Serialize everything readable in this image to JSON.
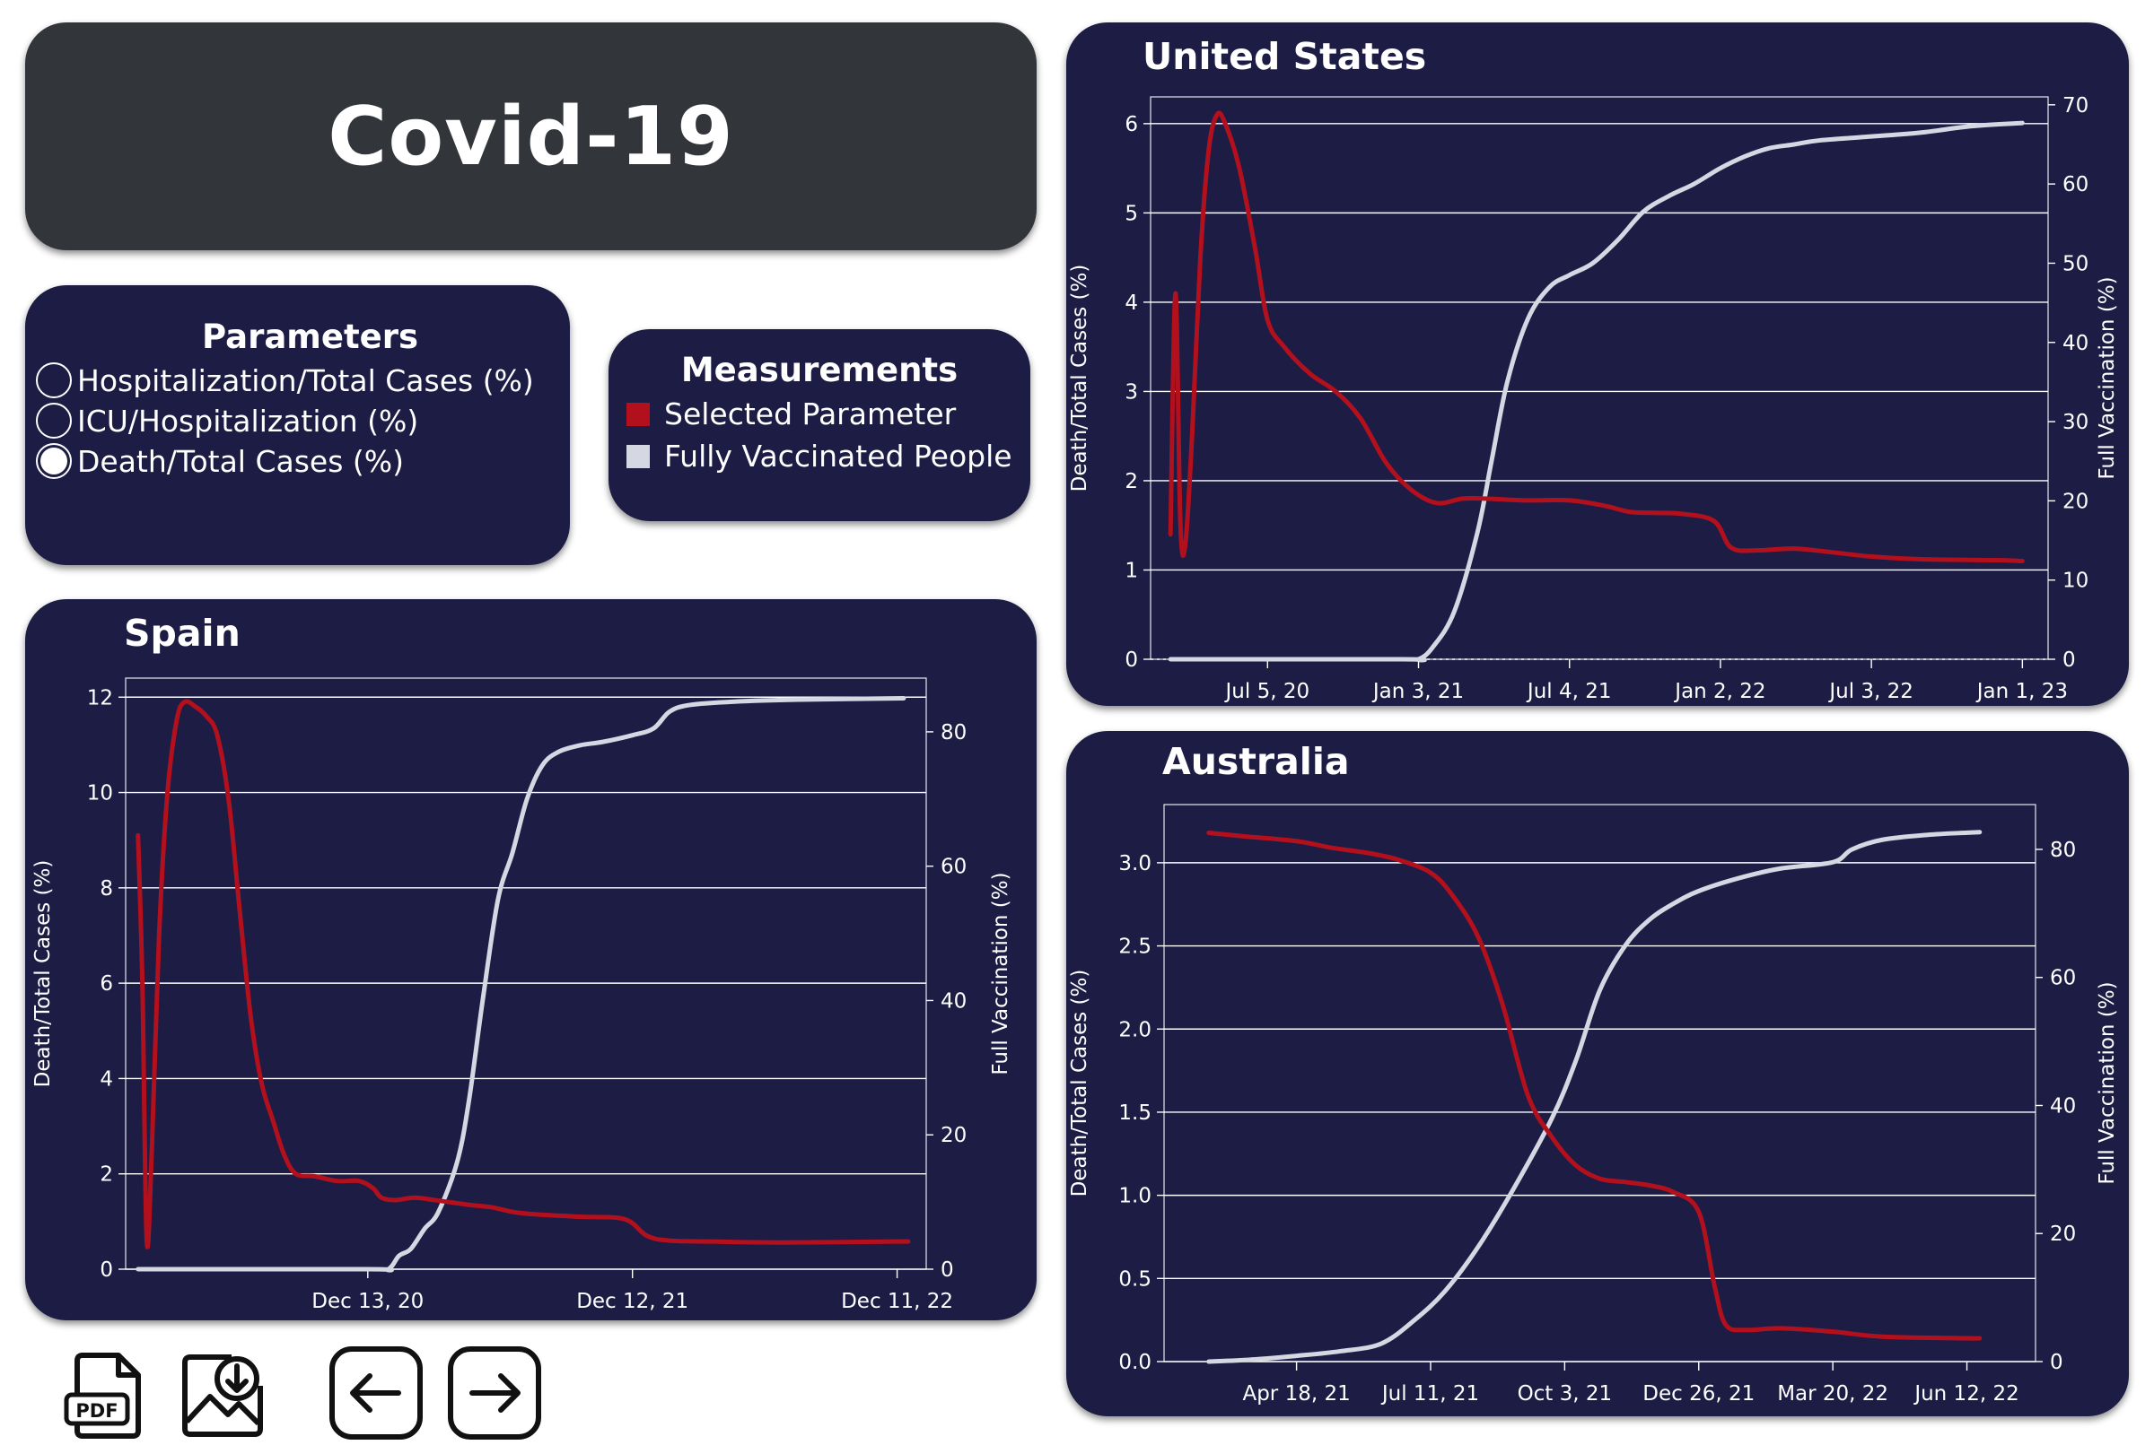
{
  "header": {
    "title": "Covid-19"
  },
  "parameters": {
    "title": "Parameters",
    "options": [
      {
        "label": "Hospitalization/Total Cases (%)",
        "checked": false
      },
      {
        "label": "ICU/Hospitalization (%)",
        "checked": false
      },
      {
        "label": "Death/Total Cases (%)",
        "checked": true
      }
    ]
  },
  "measurements": {
    "title": "Measurements",
    "items": [
      {
        "label": "Selected Parameter",
        "color": "#b3101e"
      },
      {
        "label": "Fully Vaccinated People",
        "color": "#d5d8e3"
      }
    ]
  },
  "colors": {
    "panel": "#1c1c45",
    "title_panel": "#32353a",
    "selected": "#b3101e",
    "vaccinated": "#d5d8e3",
    "grid": "#ffffff"
  },
  "toolbar": {
    "icons": [
      "pdf-download-icon",
      "image-download-icon",
      "back-arrow-icon",
      "forward-arrow-icon"
    ],
    "pdf_label": "PDF"
  },
  "chart_data": [
    {
      "id": "us",
      "title": "United States",
      "type": "line",
      "ylabel_left": "Death/Total Cases (%)",
      "ylabel_right": "Full Vaccination (%)",
      "ylim_left": [
        0,
        6.3
      ],
      "ylim_right": [
        0,
        71
      ],
      "yticks_left": [
        0,
        1,
        2,
        3,
        4,
        5,
        6
      ],
      "yticks_right": [
        0,
        10,
        20,
        30,
        40,
        50,
        60,
        70
      ],
      "x_tick_labels": [
        "Jul 5, 20",
        "Jan 3, 21",
        "Jul 4, 21",
        "Jan 2, 22",
        "Jul 3, 22",
        "Jan 1, 23"
      ],
      "x_tick_dates": [
        "2020-07-05",
        "2021-01-03",
        "2021-07-04",
        "2022-01-02",
        "2022-07-03",
        "2023-01-01"
      ],
      "xlim": [
        "2020-02-15",
        "2023-02-01"
      ],
      "zero_line_dotted": true,
      "series": [
        {
          "name": "Selected Parameter",
          "axis": "left",
          "color": "#b3101e",
          "points": [
            [
              "2020-03-10",
              1.4
            ],
            [
              "2020-03-16",
              4.1
            ],
            [
              "2020-03-22",
              1.5
            ],
            [
              "2020-03-28",
              1.3
            ],
            [
              "2020-04-05",
              2.5
            ],
            [
              "2020-04-15",
              4.5
            ],
            [
              "2020-04-25",
              5.7
            ],
            [
              "2020-05-05",
              6.1
            ],
            [
              "2020-05-15",
              6.0
            ],
            [
              "2020-06-01",
              5.5
            ],
            [
              "2020-06-20",
              4.6
            ],
            [
              "2020-07-05",
              3.8
            ],
            [
              "2020-07-25",
              3.5
            ],
            [
              "2020-08-25",
              3.2
            ],
            [
              "2020-09-25",
              3.0
            ],
            [
              "2020-10-25",
              2.7
            ],
            [
              "2020-11-25",
              2.2
            ],
            [
              "2020-12-25",
              1.9
            ],
            [
              "2021-01-25",
              1.75
            ],
            [
              "2021-02-25",
              1.8
            ],
            [
              "2021-03-25",
              1.8
            ],
            [
              "2021-05-10",
              1.78
            ],
            [
              "2021-07-04",
              1.78
            ],
            [
              "2021-08-15",
              1.72
            ],
            [
              "2021-09-15",
              1.65
            ],
            [
              "2021-10-15",
              1.64
            ],
            [
              "2021-11-15",
              1.63
            ],
            [
              "2021-12-25",
              1.55
            ],
            [
              "2022-01-15",
              1.25
            ],
            [
              "2022-02-15",
              1.22
            ],
            [
              "2022-04-01",
              1.24
            ],
            [
              "2022-05-15",
              1.2
            ],
            [
              "2022-07-03",
              1.15
            ],
            [
              "2022-09-01",
              1.12
            ],
            [
              "2022-12-01",
              1.11
            ],
            [
              "2023-01-01",
              1.1
            ]
          ]
        },
        {
          "name": "Fully Vaccinated People",
          "axis": "right",
          "color": "#d5d8e3",
          "points": [
            [
              "2020-03-10",
              0
            ],
            [
              "2020-12-15",
              0
            ],
            [
              "2021-01-03",
              0
            ],
            [
              "2021-01-20",
              1.5
            ],
            [
              "2021-02-15",
              6
            ],
            [
              "2021-03-15",
              16
            ],
            [
              "2021-04-01",
              25
            ],
            [
              "2021-04-20",
              35
            ],
            [
              "2021-05-15",
              43
            ],
            [
              "2021-06-10",
              47
            ],
            [
              "2021-07-04",
              48.5
            ],
            [
              "2021-08-01",
              50
            ],
            [
              "2021-09-01",
              53
            ],
            [
              "2021-10-01",
              56.5
            ],
            [
              "2021-11-01",
              58.5
            ],
            [
              "2021-12-01",
              60
            ],
            [
              "2022-01-02",
              62
            ],
            [
              "2022-02-01",
              63.5
            ],
            [
              "2022-03-01",
              64.5
            ],
            [
              "2022-04-01",
              65
            ],
            [
              "2022-05-01",
              65.5
            ],
            [
              "2022-07-03",
              66
            ],
            [
              "2022-09-01",
              66.5
            ],
            [
              "2022-11-01",
              67.3
            ],
            [
              "2023-01-01",
              67.7
            ]
          ]
        }
      ]
    },
    {
      "id": "spain",
      "title": "Spain",
      "type": "line",
      "ylabel_left": "Death/Total Cases (%)",
      "ylabel_right": "Full Vaccination (%)",
      "ylim_left": [
        0,
        12.4
      ],
      "ylim_right": [
        0,
        88
      ],
      "yticks_left": [
        0,
        2,
        4,
        6,
        8,
        10,
        12
      ],
      "yticks_right": [
        0,
        20,
        40,
        60,
        80
      ],
      "x_tick_labels": [
        "Dec 13, 20",
        "Dec 12, 21",
        "Dec 11, 22"
      ],
      "x_tick_dates": [
        "2020-12-13",
        "2021-12-12",
        "2022-12-11"
      ],
      "xlim": [
        "2020-01-15",
        "2023-01-20"
      ],
      "zero_line_dotted": false,
      "series": [
        {
          "name": "Selected Parameter",
          "axis": "left",
          "color": "#b3101e",
          "points": [
            [
              "2020-02-01",
              9.1
            ],
            [
              "2020-02-07",
              6.0
            ],
            [
              "2020-02-13",
              0.6
            ],
            [
              "2020-02-20",
              2.5
            ],
            [
              "2020-03-01",
              7.0
            ],
            [
              "2020-03-12",
              9.9
            ],
            [
              "2020-03-25",
              11.5
            ],
            [
              "2020-04-05",
              11.9
            ],
            [
              "2020-04-20",
              11.8
            ],
            [
              "2020-05-05",
              11.6
            ],
            [
              "2020-05-20",
              11.2
            ],
            [
              "2020-06-05",
              9.8
            ],
            [
              "2020-06-20",
              7.5
            ],
            [
              "2020-07-05",
              5.3
            ],
            [
              "2020-07-20",
              3.9
            ],
            [
              "2020-08-05",
              3.1
            ],
            [
              "2020-08-20",
              2.4
            ],
            [
              "2020-09-05",
              2.0
            ],
            [
              "2020-10-01",
              1.95
            ],
            [
              "2020-11-01",
              1.85
            ],
            [
              "2020-12-01",
              1.85
            ],
            [
              "2020-12-20",
              1.7
            ],
            [
              "2021-01-01",
              1.5
            ],
            [
              "2021-01-20",
              1.45
            ],
            [
              "2021-02-15",
              1.5
            ],
            [
              "2021-03-15",
              1.45
            ],
            [
              "2021-05-01",
              1.35
            ],
            [
              "2021-06-01",
              1.3
            ],
            [
              "2021-07-01",
              1.2
            ],
            [
              "2021-08-01",
              1.15
            ],
            [
              "2021-10-01",
              1.1
            ],
            [
              "2021-12-01",
              1.05
            ],
            [
              "2022-01-01",
              0.7
            ],
            [
              "2022-02-01",
              0.6
            ],
            [
              "2022-04-01",
              0.58
            ],
            [
              "2022-07-01",
              0.56
            ],
            [
              "2022-12-11",
              0.58
            ],
            [
              "2022-12-20",
              0.58
            ]
          ]
        },
        {
          "name": "Fully Vaccinated People",
          "axis": "right",
          "color": "#d5d8e3",
          "points": [
            [
              "2020-02-01",
              0
            ],
            [
              "2020-12-13",
              0
            ],
            [
              "2021-01-10",
              0
            ],
            [
              "2021-01-25",
              2
            ],
            [
              "2021-02-10",
              3
            ],
            [
              "2021-03-01",
              6
            ],
            [
              "2021-03-20",
              8.5
            ],
            [
              "2021-04-15",
              16
            ],
            [
              "2021-05-01",
              25
            ],
            [
              "2021-05-20",
              40
            ],
            [
              "2021-06-10",
              55
            ],
            [
              "2021-06-30",
              62
            ],
            [
              "2021-07-20",
              70
            ],
            [
              "2021-08-10",
              75
            ],
            [
              "2021-09-01",
              77
            ],
            [
              "2021-10-01",
              78
            ],
            [
              "2021-11-01",
              78.5
            ],
            [
              "2021-12-12",
              79.5
            ],
            [
              "2022-01-10",
              80.5
            ],
            [
              "2022-02-01",
              83
            ],
            [
              "2022-03-01",
              84
            ],
            [
              "2022-05-01",
              84.5
            ],
            [
              "2022-08-01",
              84.8
            ],
            [
              "2022-12-20",
              85
            ]
          ]
        }
      ]
    },
    {
      "id": "australia",
      "title": "Australia",
      "type": "line",
      "ylabel_left": "Death/Total Cases (%)",
      "ylabel_right": "Full Vaccination (%)",
      "ylim_left": [
        0,
        3.35
      ],
      "ylim_right": [
        0,
        87
      ],
      "yticks_left": [
        0.0,
        0.5,
        1.0,
        1.5,
        2.0,
        2.5,
        3.0
      ],
      "yticks_left_labels": [
        "0.0",
        "0.5",
        "1.0",
        "1.5",
        "2.0",
        "2.5",
        "3.0"
      ],
      "yticks_right": [
        0,
        20,
        40,
        60,
        80
      ],
      "x_tick_labels": [
        "Apr 18, 21",
        "Jul 11, 21",
        "Oct 3, 21",
        "Dec 26, 21",
        "Mar 20, 22",
        "Jun 12, 22"
      ],
      "x_tick_dates": [
        "2021-04-18",
        "2021-07-11",
        "2021-10-03",
        "2021-12-26",
        "2022-03-20",
        "2022-06-12"
      ],
      "xlim": [
        "2021-01-25",
        "2022-07-25"
      ],
      "zero_line_dotted": false,
      "series": [
        {
          "name": "Selected Parameter",
          "axis": "left",
          "color": "#b3101e",
          "points": [
            [
              "2021-02-22",
              3.18
            ],
            [
              "2021-03-15",
              3.16
            ],
            [
              "2021-04-18",
              3.13
            ],
            [
              "2021-05-10",
              3.09
            ],
            [
              "2021-06-01",
              3.06
            ],
            [
              "2021-06-20",
              3.02
            ],
            [
              "2021-07-11",
              2.94
            ],
            [
              "2021-07-25",
              2.8
            ],
            [
              "2021-08-10",
              2.55
            ],
            [
              "2021-08-25",
              2.15
            ],
            [
              "2021-09-10",
              1.6
            ],
            [
              "2021-09-25",
              1.35
            ],
            [
              "2021-10-10",
              1.18
            ],
            [
              "2021-10-25",
              1.1
            ],
            [
              "2021-11-10",
              1.08
            ],
            [
              "2021-11-25",
              1.06
            ],
            [
              "2021-12-10",
              1.02
            ],
            [
              "2021-12-26",
              0.9
            ],
            [
              "2022-01-05",
              0.45
            ],
            [
              "2022-01-12",
              0.22
            ],
            [
              "2022-01-25",
              0.19
            ],
            [
              "2022-02-15",
              0.2
            ],
            [
              "2022-03-20",
              0.18
            ],
            [
              "2022-04-20",
              0.15
            ],
            [
              "2022-06-12",
              0.14
            ],
            [
              "2022-06-20",
              0.14
            ]
          ]
        },
        {
          "name": "Fully Vaccinated People",
          "axis": "right",
          "color": "#d5d8e3",
          "points": [
            [
              "2021-02-22",
              0
            ],
            [
              "2021-03-20",
              0.3
            ],
            [
              "2021-04-18",
              0.9
            ],
            [
              "2021-05-15",
              1.6
            ],
            [
              "2021-06-10",
              2.8
            ],
            [
              "2021-07-01",
              6.5
            ],
            [
              "2021-07-20",
              11
            ],
            [
              "2021-08-10",
              18
            ],
            [
              "2021-09-01",
              27
            ],
            [
              "2021-09-25",
              38
            ],
            [
              "2021-10-10",
              47
            ],
            [
              "2021-10-25",
              58
            ],
            [
              "2021-11-10",
              65
            ],
            [
              "2021-11-25",
              69
            ],
            [
              "2021-12-10",
              71.5
            ],
            [
              "2021-12-26",
              73.5
            ],
            [
              "2022-01-20",
              75.5
            ],
            [
              "2022-02-15",
              77
            ],
            [
              "2022-03-20",
              78
            ],
            [
              "2022-04-01",
              80
            ],
            [
              "2022-04-20",
              81.5
            ],
            [
              "2022-05-20",
              82.3
            ],
            [
              "2022-06-12",
              82.6
            ],
            [
              "2022-06-20",
              82.7
            ]
          ]
        }
      ]
    }
  ]
}
